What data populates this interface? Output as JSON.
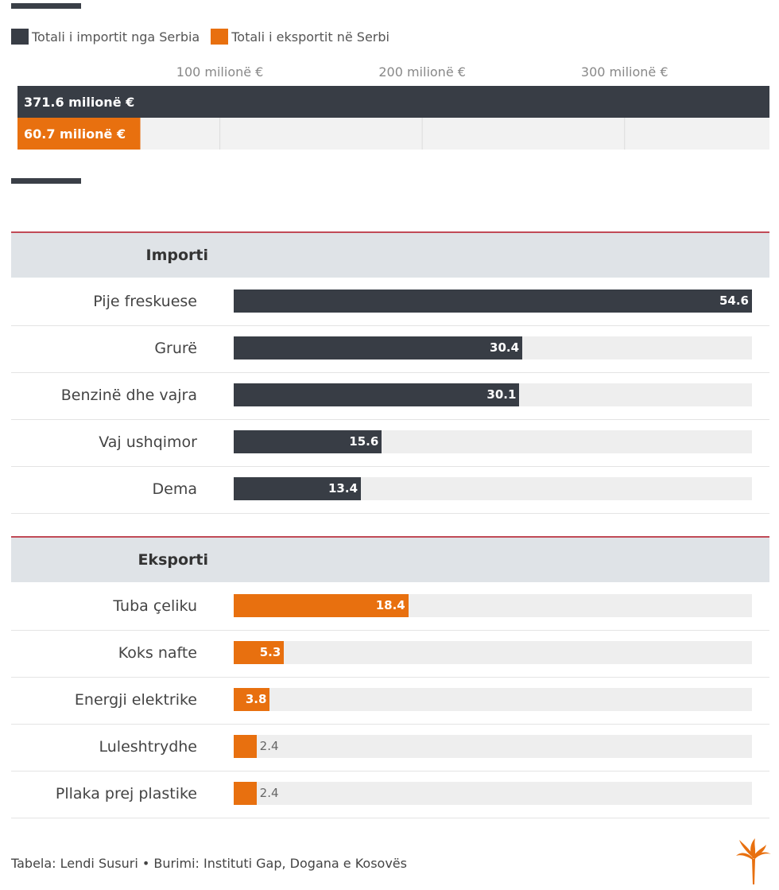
{
  "legend": {
    "import_label": "Totali i importit nga Serbia",
    "export_label": "Totali i eksportit në Serbi"
  },
  "colors": {
    "import": "#383d45",
    "export": "#e8700f"
  },
  "chart_data": [
    {
      "type": "bar",
      "orientation": "horizontal",
      "categories": [
        "Totali i importit nga Serbia",
        "Totali i eksportit në Serbi"
      ],
      "values": [
        371.6,
        60.7
      ],
      "data_labels": [
        "371.6 milionë €",
        "60.7 milionë €"
      ],
      "ticks": [
        100,
        200,
        300
      ],
      "tick_labels": [
        "100 milionë €",
        "200 milionë €",
        "300 milionë €"
      ],
      "xlim": [
        0,
        371.6
      ],
      "grid": true,
      "legend_position": "top-left"
    },
    {
      "type": "bar",
      "orientation": "horizontal",
      "title": "Importi",
      "categories": [
        "Pije freskuese",
        "Grurë",
        "Benzinë dhe vajra",
        "Vaj ushqimor",
        "Dema"
      ],
      "values": [
        54.6,
        30.4,
        30.1,
        15.6,
        13.4
      ],
      "xlim": [
        0,
        54.6
      ]
    },
    {
      "type": "bar",
      "orientation": "horizontal",
      "title": "Eksporti",
      "categories": [
        "Tuba çeliku",
        "Koks nafte",
        "Energji elektrike",
        "Luleshtrydhe",
        "Pllaka prej plastike"
      ],
      "values": [
        18.4,
        5.3,
        3.8,
        2.4,
        2.4
      ],
      "xlim": [
        0,
        54.6
      ]
    }
  ],
  "footer": {
    "text": "Tabela: Lendi Susuri • Burimi: Instituti Gap, Dogana e Kosovës"
  },
  "icons": {
    "logo": "rferl-torch-logo"
  }
}
